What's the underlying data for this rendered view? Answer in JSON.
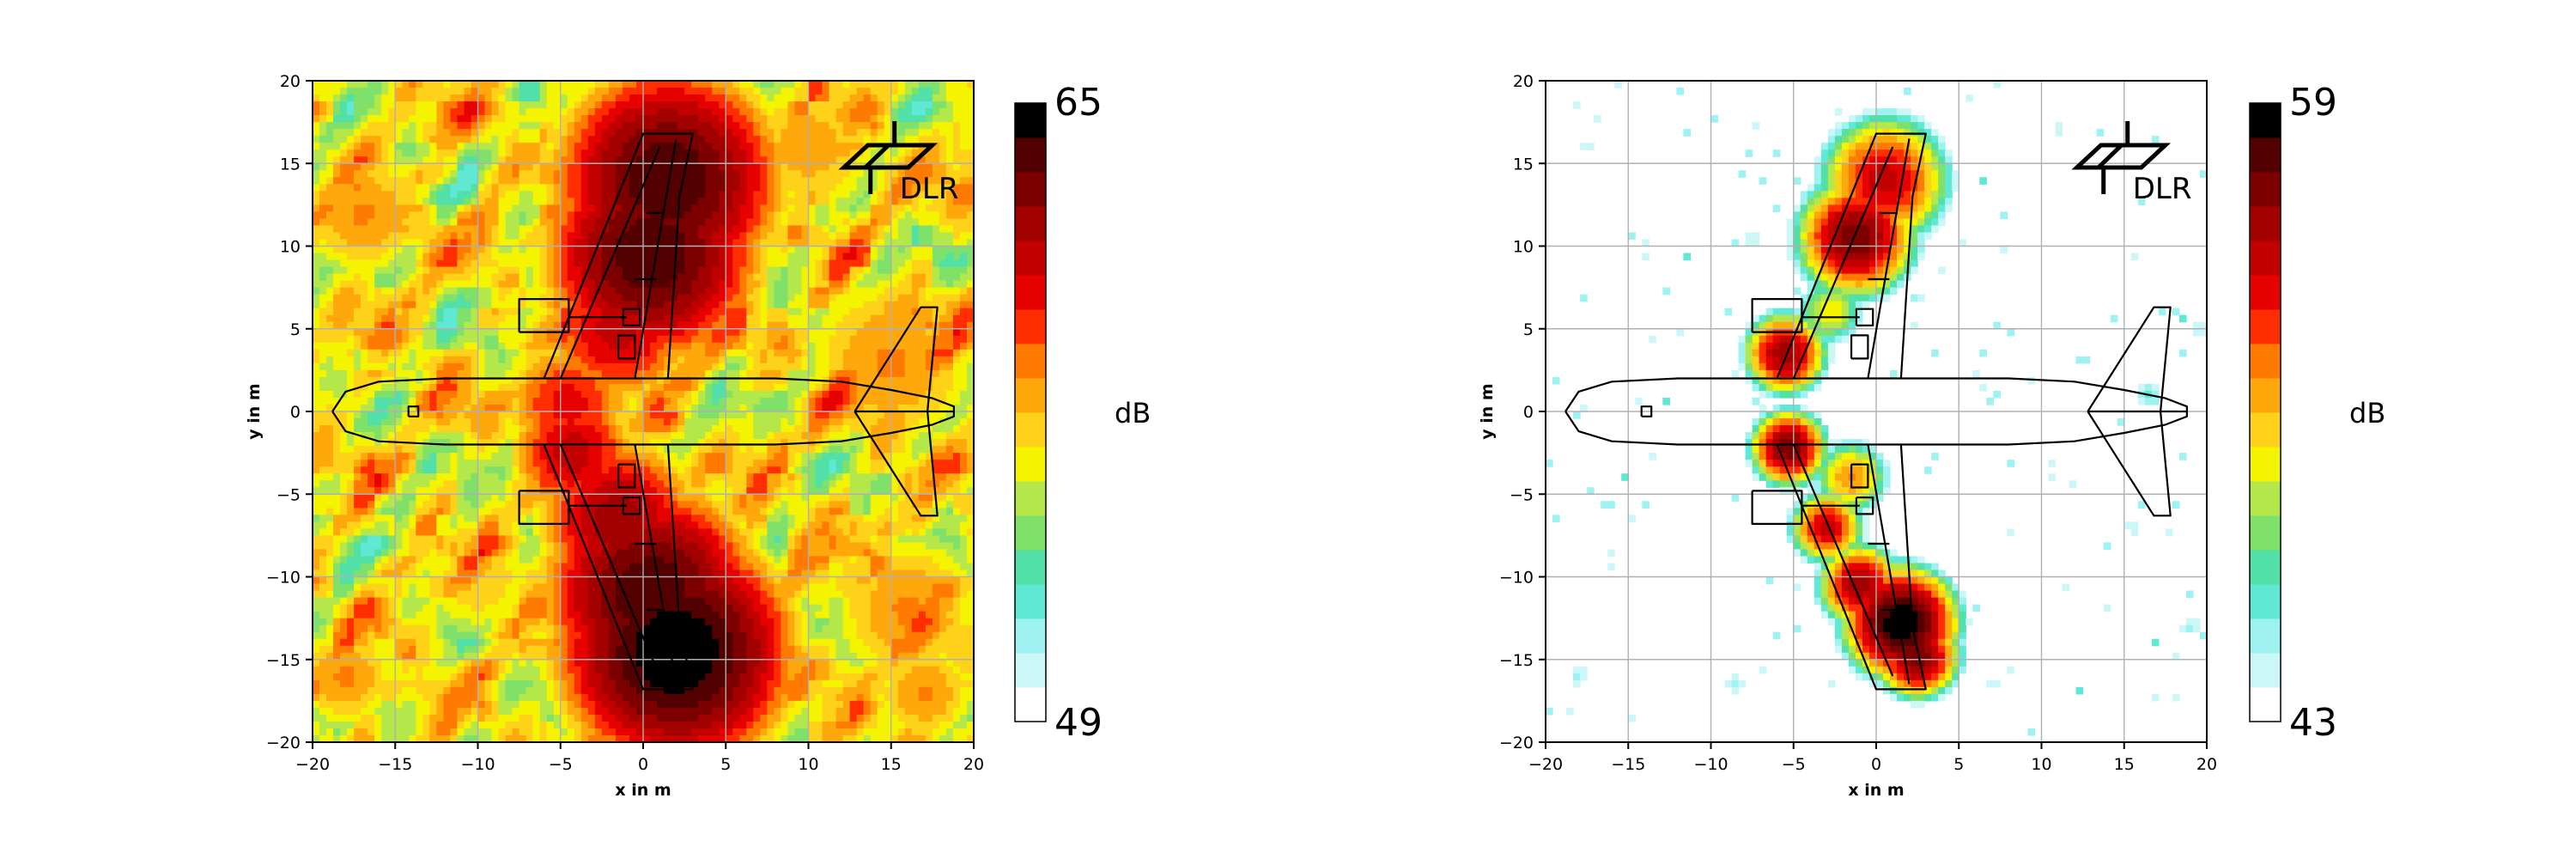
{
  "colormap": [
    "#ffffff",
    "#ccf7f7",
    "#9ef2f2",
    "#5fe8d4",
    "#50e0a8",
    "#7fe06a",
    "#b4e84a",
    "#f4f400",
    "#ffd21a",
    "#ffa80c",
    "#ff7a00",
    "#ff2d00",
    "#e60000",
    "#c20000",
    "#a30000",
    "#7d0000",
    "#520000",
    "#000000"
  ],
  "airframe_color": "#000000",
  "logo": {
    "text": "DLR",
    "icon": "dlr-logo-icon"
  },
  "chart_data": [
    {
      "type": "heatmap",
      "name": "left-map",
      "xlabel": "x in m",
      "ylabel": "y in m",
      "xlim": [
        -20,
        20
      ],
      "ylim": [
        -20,
        20
      ],
      "xticks": [
        -20,
        -15,
        -10,
        -5,
        0,
        5,
        10,
        15,
        20
      ],
      "yticks": [
        -20,
        -15,
        -10,
        -5,
        0,
        5,
        10,
        15,
        20
      ],
      "xtick_labels": [
        "−20",
        "−15",
        "−10",
        "−5",
        "0",
        "5",
        "10",
        "15",
        "20"
      ],
      "ytick_labels": [
        "−20",
        "−15",
        "−10",
        "−5",
        "0",
        "5",
        "10",
        "15",
        "20"
      ],
      "grid": true,
      "colorbar": {
        "min": 49,
        "max": 65,
        "min_label": "49",
        "max_label": "65",
        "unit": "dB"
      },
      "background_level": 56,
      "sources": [
        {
          "x": 1.5,
          "y": 14,
          "level": 64,
          "spread": 3.2
        },
        {
          "x": 0.5,
          "y": 9.5,
          "level": 64,
          "spread": 3.0
        },
        {
          "x": -1.5,
          "y": 5,
          "level": 61,
          "spread": 2.4
        },
        {
          "x": -4.5,
          "y": 0.5,
          "level": 60,
          "spread": 2.2
        },
        {
          "x": -4.2,
          "y": -2.5,
          "level": 61,
          "spread": 2.0
        },
        {
          "x": -1.5,
          "y": -6.5,
          "level": 62,
          "spread": 2.4
        },
        {
          "x": 0.5,
          "y": -11,
          "level": 64,
          "spread": 3.0
        },
        {
          "x": 2,
          "y": -14.5,
          "level": 65,
          "spread": 3.2
        },
        {
          "x": -18,
          "y": -16,
          "level": 58,
          "spread": 2.0
        },
        {
          "x": -17,
          "y": 12,
          "level": 58,
          "spread": 2.5
        },
        {
          "x": 15,
          "y": 3,
          "level": 58,
          "spread": 3.5
        },
        {
          "x": 16,
          "y": -12,
          "level": 58,
          "spread": 3.0
        },
        {
          "x": 10,
          "y": 16,
          "level": 57.5,
          "spread": 3.0
        },
        {
          "x": -10,
          "y": -10,
          "level": 57,
          "spread": 2.5
        },
        {
          "x": 17,
          "y": -17,
          "level": 58,
          "spread": 2.0
        }
      ]
    },
    {
      "type": "heatmap",
      "name": "right-map",
      "xlabel": "x in m",
      "ylabel": "y in m",
      "xlim": [
        -20,
        20
      ],
      "ylim": [
        -20,
        20
      ],
      "xticks": [
        -20,
        -15,
        -10,
        -5,
        0,
        5,
        10,
        15,
        20
      ],
      "yticks": [
        -20,
        -15,
        -10,
        -5,
        0,
        5,
        10,
        15,
        20
      ],
      "xtick_labels": [
        "−20",
        "−15",
        "−10",
        "−5",
        "0",
        "5",
        "10",
        "15",
        "20"
      ],
      "ytick_labels": [
        "−20",
        "−15",
        "−10",
        "−5",
        "0",
        "5",
        "10",
        "15",
        "20"
      ],
      "grid": true,
      "colorbar": {
        "min": 43,
        "max": 59,
        "min_label": "43",
        "max_label": "59",
        "unit": "dB"
      },
      "background_level": 38,
      "sources": [
        {
          "x": 0.5,
          "y": 14,
          "level": 55,
          "spread": 1.6
        },
        {
          "x": -1.2,
          "y": 10.5,
          "level": 57,
          "spread": 1.4
        },
        {
          "x": -2.8,
          "y": 6,
          "level": 50,
          "spread": 1.0
        },
        {
          "x": -5.5,
          "y": 3.5,
          "level": 56,
          "spread": 1.0
        },
        {
          "x": -5.3,
          "y": -2.2,
          "level": 57,
          "spread": 0.9
        },
        {
          "x": -1.5,
          "y": -4,
          "level": 52,
          "spread": 1.0
        },
        {
          "x": -3,
          "y": -7,
          "level": 55,
          "spread": 0.9
        },
        {
          "x": -1,
          "y": -10.5,
          "level": 56,
          "spread": 1.0
        },
        {
          "x": 1.5,
          "y": -12.8,
          "level": 59,
          "spread": 1.3
        },
        {
          "x": 2.5,
          "y": -14.8,
          "level": 57,
          "spread": 1.0
        },
        {
          "x": 16.5,
          "y": 1,
          "level": 46,
          "spread": 0.6
        },
        {
          "x": 19.5,
          "y": 5,
          "level": 45,
          "spread": 0.6
        },
        {
          "x": 19,
          "y": -13,
          "level": 45,
          "spread": 0.6
        },
        {
          "x": -18,
          "y": -16,
          "level": 45,
          "spread": 0.6
        },
        {
          "x": -7.5,
          "y": 10.5,
          "level": 45,
          "spread": 0.6
        },
        {
          "x": -8.5,
          "y": -16.5,
          "level": 45,
          "spread": 0.6
        },
        {
          "x": 11,
          "y": 17,
          "level": 44.5,
          "spread": 0.5
        },
        {
          "x": 15.5,
          "y": -7,
          "level": 44.5,
          "spread": 0.6
        },
        {
          "x": -17.5,
          "y": 16,
          "level": 44.5,
          "spread": 0.5
        },
        {
          "x": 7,
          "y": -16.5,
          "level": 44.5,
          "spread": 0.5
        }
      ]
    }
  ]
}
